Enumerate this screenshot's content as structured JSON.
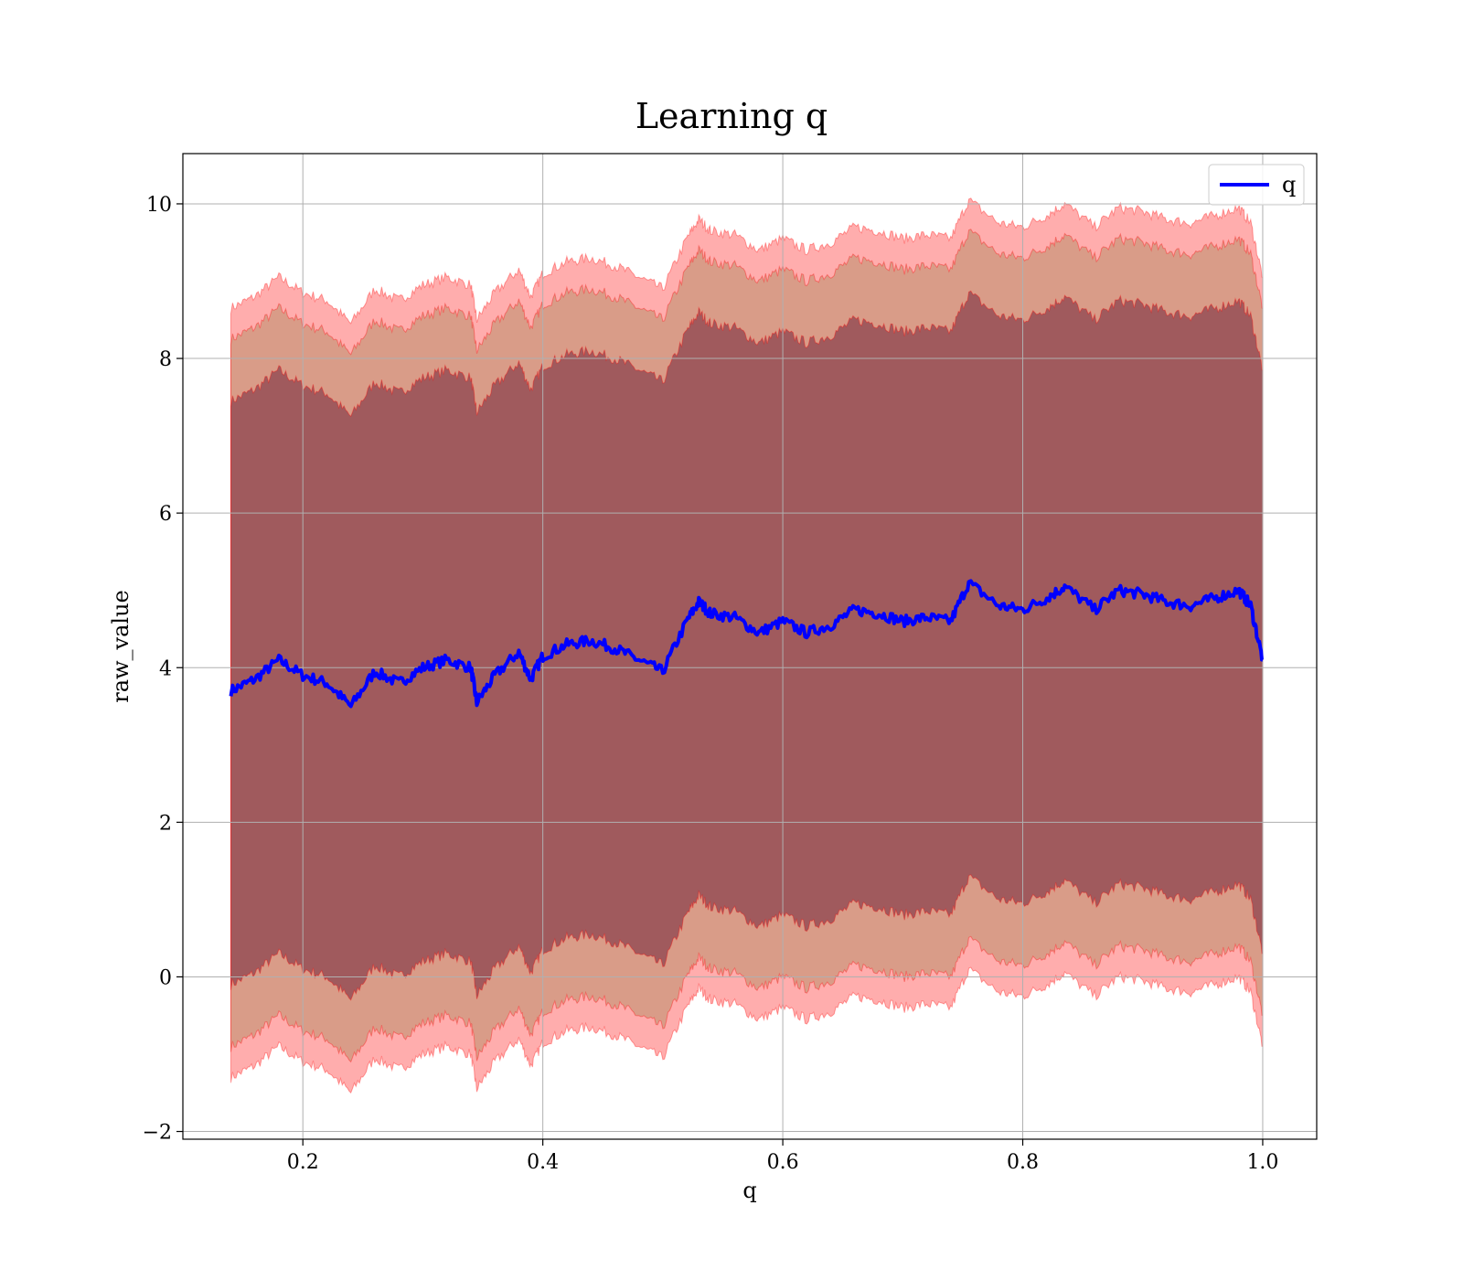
{
  "chart_data": {
    "type": "line",
    "title": "Learning q",
    "xlabel": "q",
    "ylabel": "raw_value",
    "xlim": [
      0.1,
      1.045
    ],
    "ylim": [
      -2.1,
      10.65
    ],
    "xticks": [
      0.2,
      0.4,
      0.6,
      0.8,
      1.0
    ],
    "xtick_labels": [
      "0.2",
      "0.4",
      "0.6",
      "0.8",
      "1.0"
    ],
    "yticks": [
      -2,
      0,
      2,
      4,
      6,
      8,
      10
    ],
    "ytick_labels": [
      "−2",
      "0",
      "2",
      "4",
      "6",
      "8",
      "10"
    ],
    "grid": true,
    "legend": {
      "position": "top-right",
      "entries": [
        "q"
      ]
    },
    "colors": {
      "line": "#0000ff",
      "band": "#ff0000",
      "band_inner": "#5a0a2a",
      "band_mid": "#8a7a3a"
    },
    "series": [
      {
        "name": "q",
        "x": [
          0.14,
          0.16,
          0.18,
          0.2,
          0.22,
          0.24,
          0.26,
          0.28,
          0.3,
          0.32,
          0.34,
          0.345,
          0.36,
          0.38,
          0.39,
          0.4,
          0.42,
          0.44,
          0.46,
          0.48,
          0.5,
          0.52,
          0.53,
          0.54,
          0.56,
          0.58,
          0.6,
          0.62,
          0.64,
          0.66,
          0.68,
          0.7,
          0.72,
          0.74,
          0.755,
          0.78,
          0.8,
          0.82,
          0.835,
          0.86,
          0.88,
          0.9,
          0.92,
          0.94,
          0.96,
          0.98,
          0.99,
          1.0
        ],
        "y": [
          3.7,
          3.85,
          4.1,
          3.9,
          3.8,
          3.5,
          3.95,
          3.8,
          4.0,
          4.1,
          4.0,
          3.55,
          3.9,
          4.2,
          3.85,
          4.15,
          4.3,
          4.35,
          4.25,
          4.1,
          3.95,
          4.6,
          4.85,
          4.7,
          4.65,
          4.45,
          4.6,
          4.45,
          4.55,
          4.75,
          4.7,
          4.6,
          4.65,
          4.6,
          5.1,
          4.8,
          4.75,
          4.9,
          5.05,
          4.75,
          5.0,
          4.95,
          4.85,
          4.8,
          4.9,
          5.0,
          4.8,
          4.1
        ]
      }
    ],
    "bands": [
      {
        "label": "",
        "offset_lower": -5.0,
        "offset_upper": 4.95,
        "opacity": 0.32
      },
      {
        "label": "",
        "offset_lower": -4.6,
        "offset_upper": 4.55,
        "opacity": 0.32
      },
      {
        "label": "",
        "offset_lower": -3.8,
        "offset_upper": 3.75,
        "opacity": 0.45
      }
    ]
  }
}
